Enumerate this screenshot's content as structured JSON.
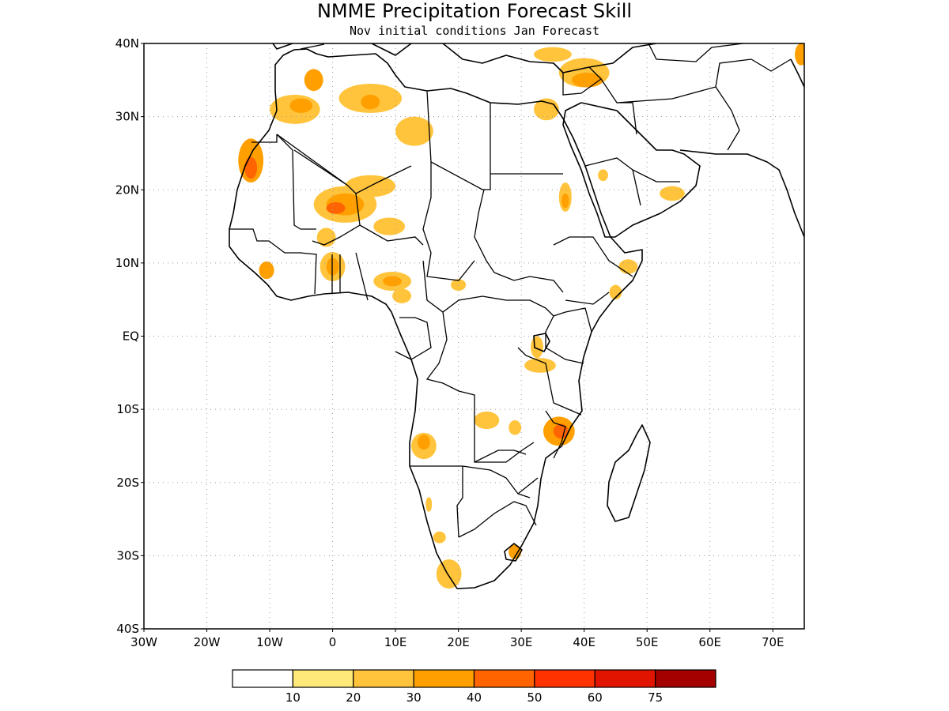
{
  "title": "NMME Precipitation Forecast Skill",
  "subtitle": "Nov initial conditions  Jan Forecast",
  "map": {
    "lat_range": [
      -40,
      40
    ],
    "lon_range": [
      -30,
      75
    ],
    "lat_ticks": [
      {
        "value": 40,
        "label": "40N"
      },
      {
        "value": 30,
        "label": "30N"
      },
      {
        "value": 20,
        "label": "20N"
      },
      {
        "value": 10,
        "label": "10N"
      },
      {
        "value": 0,
        "label": "EQ"
      },
      {
        "value": -10,
        "label": "10S"
      },
      {
        "value": -20,
        "label": "20S"
      },
      {
        "value": -30,
        "label": "30S"
      },
      {
        "value": -40,
        "label": "40S"
      }
    ],
    "lon_ticks": [
      {
        "value": -30,
        "label": "30W"
      },
      {
        "value": -20,
        "label": "20W"
      },
      {
        "value": -10,
        "label": "10W"
      },
      {
        "value": 0,
        "label": "0"
      },
      {
        "value": 10,
        "label": "10E"
      },
      {
        "value": 20,
        "label": "20E"
      },
      {
        "value": 30,
        "label": "30E"
      },
      {
        "value": 40,
        "label": "40E"
      },
      {
        "value": 50,
        "label": "50E"
      },
      {
        "value": 60,
        "label": "60E"
      },
      {
        "value": 70,
        "label": "70E"
      }
    ],
    "grid": true
  },
  "colorbar": {
    "colors": [
      "#ffffff",
      "#ffe978",
      "#ffc43c",
      "#ffa000",
      "#ff6400",
      "#ff3200",
      "#e11400",
      "#a50000"
    ],
    "labels": [
      "10",
      "20",
      "30",
      "40",
      "50",
      "60",
      "75"
    ]
  },
  "skill_patches": [
    {
      "name": "morocco-north",
      "lon": -3,
      "lat": 35,
      "rx": 1.5,
      "ry": 1.5,
      "level": 3
    },
    {
      "name": "morocco-coast",
      "lon": -6,
      "lat": 31,
      "rx": 4,
      "ry": 2,
      "level": 2
    },
    {
      "name": "morocco-core",
      "lon": -5,
      "lat": 31.5,
      "rx": 1.8,
      "ry": 1,
      "level": 3
    },
    {
      "name": "algeria-north",
      "lon": 6,
      "lat": 32.5,
      "rx": 5,
      "ry": 2,
      "level": 2
    },
    {
      "name": "algeria-north-core",
      "lon": 6,
      "lat": 32,
      "rx": 1.5,
      "ry": 1,
      "level": 3
    },
    {
      "name": "western-sahara",
      "lon": -13,
      "lat": 24,
      "rx": 2,
      "ry": 3,
      "level": 3
    },
    {
      "name": "western-sahara-core",
      "lon": -13,
      "lat": 23,
      "rx": 1,
      "ry": 1.5,
      "level": 4
    },
    {
      "name": "algeria-south",
      "lon": 13,
      "lat": 28,
      "rx": 3,
      "ry": 2,
      "level": 2
    },
    {
      "name": "mali-niger",
      "lon": 2,
      "lat": 18,
      "rx": 5,
      "ry": 2.5,
      "level": 2
    },
    {
      "name": "mali-niger-mid",
      "lon": 2,
      "lat": 18,
      "rx": 3,
      "ry": 1.5,
      "level": 3
    },
    {
      "name": "mali-niger-core",
      "lon": 0.5,
      "lat": 17.5,
      "rx": 1.5,
      "ry": 0.8,
      "level": 4
    },
    {
      "name": "niger-north",
      "lon": 6,
      "lat": 20.5,
      "rx": 4,
      "ry": 1.5,
      "level": 2
    },
    {
      "name": "niger-east",
      "lon": 9,
      "lat": 15,
      "rx": 2.5,
      "ry": 1.2,
      "level": 2
    },
    {
      "name": "burkina",
      "lon": -1,
      "lat": 13.5,
      "rx": 1.5,
      "ry": 1.3,
      "level": 2
    },
    {
      "name": "ghana-togo",
      "lon": 0,
      "lat": 9.5,
      "rx": 2,
      "ry": 2,
      "level": 2
    },
    {
      "name": "ghana-togo-core",
      "lon": 0,
      "lat": 9.5,
      "rx": 1,
      "ry": 1.2,
      "level": 3
    },
    {
      "name": "guinea-sierra-leone",
      "lon": -10.5,
      "lat": 9,
      "rx": 1.2,
      "ry": 1.2,
      "level": 3
    },
    {
      "name": "nigeria",
      "lon": 9.5,
      "lat": 7.5,
      "rx": 3,
      "ry": 1.3,
      "level": 2
    },
    {
      "name": "nigeria-core",
      "lon": 9.5,
      "lat": 7.5,
      "rx": 1.5,
      "ry": 0.7,
      "level": 3
    },
    {
      "name": "cameroon",
      "lon": 11,
      "lat": 5.5,
      "rx": 1.5,
      "ry": 1,
      "level": 2
    },
    {
      "name": "car",
      "lon": 20,
      "lat": 7,
      "rx": 1.2,
      "ry": 0.8,
      "level": 2
    },
    {
      "name": "egypt-north",
      "lon": 34,
      "lat": 31,
      "rx": 2,
      "ry": 1.5,
      "level": 2
    },
    {
      "name": "turkey-levant",
      "lon": 40,
      "lat": 36,
      "rx": 4,
      "ry": 2,
      "level": 2
    },
    {
      "name": "turkey-levant-core",
      "lon": 40.5,
      "lat": 35,
      "rx": 2.5,
      "ry": 1,
      "level": 3
    },
    {
      "name": "turkey-west",
      "lon": 35,
      "lat": 38.5,
      "rx": 3,
      "ry": 1,
      "level": 2
    },
    {
      "name": "iran-edge",
      "lon": 74.5,
      "lat": 38.5,
      "rx": 1,
      "ry": 1.5,
      "level": 3
    },
    {
      "name": "red-sea-sudan",
      "lon": 37,
      "lat": 19,
      "rx": 1,
      "ry": 2,
      "level": 2
    },
    {
      "name": "red-sea-core",
      "lon": 37,
      "lat": 18.5,
      "rx": 0.6,
      "ry": 1,
      "level": 3
    },
    {
      "name": "saudi-central",
      "lon": 43,
      "lat": 22,
      "rx": 0.8,
      "ry": 0.8,
      "level": 2
    },
    {
      "name": "yemen-oman",
      "lon": 54,
      "lat": 19.5,
      "rx": 2,
      "ry": 1,
      "level": 2
    },
    {
      "name": "somalia-north",
      "lon": 47,
      "lat": 9.5,
      "rx": 1.5,
      "ry": 1,
      "level": 2
    },
    {
      "name": "ethiopia-south",
      "lon": 45,
      "lat": 6,
      "rx": 1,
      "ry": 1,
      "level": 2
    },
    {
      "name": "lake-victoria",
      "lon": 32.5,
      "lat": -1.5,
      "rx": 1,
      "ry": 1.5,
      "level": 2
    },
    {
      "name": "tanzania",
      "lon": 33,
      "lat": -4,
      "rx": 2.5,
      "ry": 1,
      "level": 2
    },
    {
      "name": "zambia-north",
      "lon": 24.5,
      "lat": -11.5,
      "rx": 2,
      "ry": 1.2,
      "level": 2
    },
    {
      "name": "angola",
      "lon": 14.5,
      "lat": -15,
      "rx": 2,
      "ry": 1.8,
      "level": 2
    },
    {
      "name": "angola-core",
      "lon": 14.5,
      "lat": -14.5,
      "rx": 1,
      "ry": 1,
      "level": 3
    },
    {
      "name": "malawi-mozambique",
      "lon": 36,
      "lat": -13,
      "rx": 2.5,
      "ry": 2,
      "level": 3
    },
    {
      "name": "malawi-core",
      "lon": 36.3,
      "lat": -13,
      "rx": 1.2,
      "ry": 1,
      "level": 4
    },
    {
      "name": "zambia-lake",
      "lon": 29,
      "lat": -12.5,
      "rx": 1,
      "ry": 1,
      "level": 2
    },
    {
      "name": "namibia",
      "lon": 15.3,
      "lat": -23,
      "rx": 0.5,
      "ry": 1,
      "level": 2
    },
    {
      "name": "south-africa-west",
      "lon": 18.5,
      "lat": -32.5,
      "rx": 2,
      "ry": 2,
      "level": 2
    },
    {
      "name": "lesotho",
      "lon": 29,
      "lat": -29.5,
      "rx": 1,
      "ry": 1,
      "level": 3
    },
    {
      "name": "namibia-south",
      "lon": 17,
      "lat": -27.5,
      "rx": 1,
      "ry": 0.8,
      "level": 2
    }
  ]
}
